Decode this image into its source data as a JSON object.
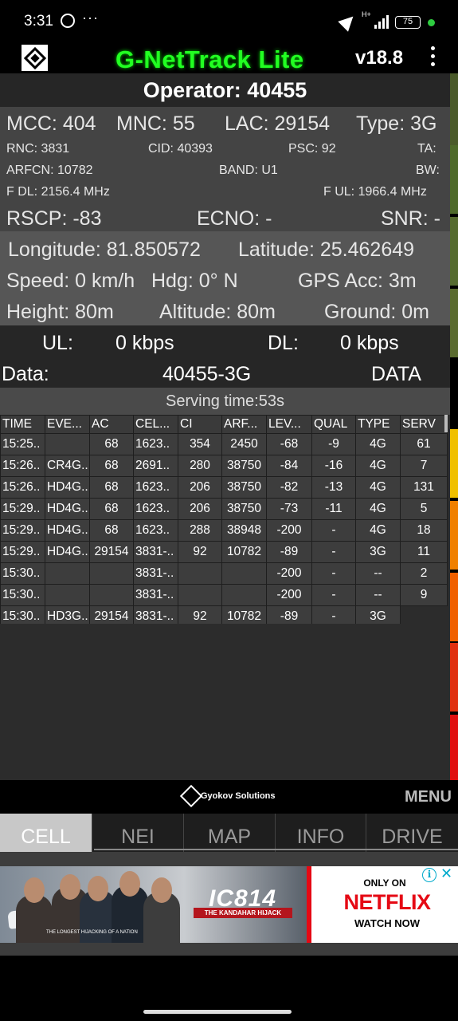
{
  "status": {
    "time": "3:31",
    "network_type": "H+",
    "battery": "75"
  },
  "app": {
    "title": "G-NetTrack Lite",
    "version": "v18.8"
  },
  "operator": "Operator: 40455",
  "cell": {
    "mcc": "MCC: 404",
    "mnc": "MNC: 55",
    "lac": "LAC: 29154",
    "type": "Type: 3G",
    "rnc": "RNC: 3831",
    "cid": "CID: 40393",
    "psc": "PSC: 92",
    "ta": "TA:",
    "arfcn": "ARFCN: 10782",
    "band": "BAND: U1",
    "bw": "BW:",
    "fdl": "F DL: 2156.4 MHz",
    "ful": "F UL: 1966.4 MHz",
    "rscp": "RSCP: -83",
    "ecno": "ECNO: -",
    "snr": "SNR: -"
  },
  "geo": {
    "longitude": "Longitude: 81.850572",
    "latitude": "Latitude: 25.462649",
    "speed": "Speed: 0 km/h",
    "hdg": "Hdg: 0° N",
    "gps_acc": "GPS Acc: 3m",
    "height": "Height: 80m",
    "altitude": "Altitude: 80m",
    "ground": "Ground: 0m"
  },
  "rate": {
    "ul_label": "UL:",
    "ul_value": "0 kbps",
    "dl_label": "DL:",
    "dl_value": "0 kbps",
    "data_label": "Data:",
    "data_value": "40455-3G",
    "data_state": "DATA"
  },
  "serving_time": "Serving time:53s",
  "table": {
    "headers": [
      "TIME",
      "EVE...",
      "AC",
      "CEL...",
      "CI",
      "ARF...",
      "LEV...",
      "QUAL",
      "TYPE",
      "SERV"
    ],
    "rows": [
      [
        "15:25..",
        "",
        "68",
        "1623..",
        "354",
        "2450",
        "-68",
        "-9",
        "4G",
        "61"
      ],
      [
        "15:26..",
        "CR4G..",
        "68",
        "2691..",
        "280",
        "38750",
        "-84",
        "-16",
        "4G",
        "7"
      ],
      [
        "15:26..",
        "HD4G..",
        "68",
        "1623..",
        "206",
        "38750",
        "-82",
        "-13",
        "4G",
        "131"
      ],
      [
        "15:29..",
        "HD4G..",
        "68",
        "1623..",
        "206",
        "38750",
        "-73",
        "-11",
        "4G",
        "5"
      ],
      [
        "15:29..",
        "HD4G..",
        "68",
        "1623..",
        "288",
        "38948",
        "-200",
        "-",
        "4G",
        "18"
      ],
      [
        "15:29..",
        "HD4G..",
        "29154",
        "3831-..",
        "92",
        "10782",
        "-89",
        "-",
        "3G",
        "11"
      ],
      [
        "15:30..",
        "",
        "",
        "3831-..",
        "",
        "",
        "-200",
        "-",
        "--",
        "2"
      ],
      [
        "15:30..",
        "",
        "",
        "3831-..",
        "",
        "",
        "-200",
        "-",
        "--",
        "9"
      ],
      [
        "15:30..",
        "HD3G..",
        "29154",
        "3831-..",
        "92",
        "10782",
        "-89",
        "-",
        "3G",
        ""
      ]
    ]
  },
  "brand": "Gyokov Solutions",
  "menu_label": "MENU",
  "tabs": [
    "CELL",
    "NEI",
    "MAP",
    "INFO",
    "DRIVE"
  ],
  "ad": {
    "title": "IC814",
    "subtitle": "THE KANDAHAR HIJACK",
    "tagline": "THE LONGEST HIJACKING OF A NATION",
    "only_on": "ONLY ON",
    "brand": "NETFLIX",
    "cta": "WATCH NOW"
  },
  "level_colors": [
    "#4a5a2a",
    "#4e6a2a",
    "#556b2f",
    "#5a6b2f",
    "#f0c000",
    "#f08000",
    "#f06000",
    "#e03010",
    "#e01010"
  ]
}
